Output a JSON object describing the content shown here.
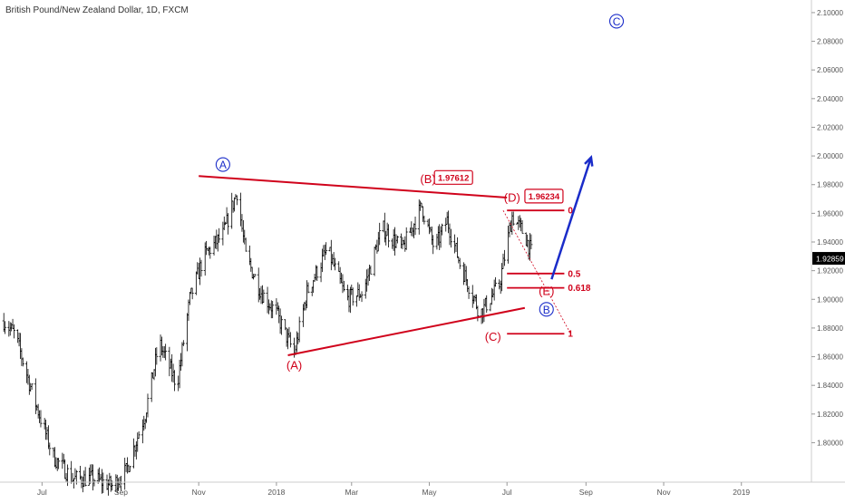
{
  "header": {
    "title": "British Pound/New Zealand Dollar, 1D, FXCM"
  },
  "colors": {
    "wave": "#d0021b",
    "blue": "#1a2cc9",
    "bar": "#000000",
    "axis": "#555555",
    "price_tag": "#000000"
  },
  "chart_data": {
    "type": "bar",
    "title": "British Pound/New Zealand Dollar, 1D, FXCM",
    "series_note": "OHLC daily bars",
    "ylim": [
      1.775,
      2.105
    ],
    "y_ticks": [
      "2.10000",
      "2.08000",
      "2.06000",
      "2.04000",
      "2.02000",
      "2.00000",
      "1.98000",
      "1.96000",
      "1.94000",
      "1.92000",
      "1.90000",
      "1.88000",
      "1.86000",
      "1.84000",
      "1.82000",
      "1.80000"
    ],
    "x_ticks": [
      "Jul",
      "Sep",
      "Nov",
      "2018",
      "Mar",
      "May",
      "Jul",
      "Sep",
      "Nov",
      "2019"
    ],
    "last_price": "1.92859",
    "price_anchors": [
      [
        "2017-06-01",
        1.885
      ],
      [
        "2017-06-10",
        1.875
      ],
      [
        "2017-06-25",
        1.83
      ],
      [
        "2017-07-10",
        1.79
      ],
      [
        "2017-07-25",
        1.775
      ],
      [
        "2017-08-10",
        1.775
      ],
      [
        "2017-08-25",
        1.77
      ],
      [
        "2017-09-05",
        1.78
      ],
      [
        "2017-09-20",
        1.82
      ],
      [
        "2017-10-01",
        1.87
      ],
      [
        "2017-10-15",
        1.84
      ],
      [
        "2017-10-25",
        1.9
      ],
      [
        "2017-11-05",
        1.93
      ],
      [
        "2017-11-20",
        1.945
      ],
      [
        "2017-12-01",
        1.975
      ],
      [
        "2017-12-08",
        1.93
      ],
      [
        "2017-12-20",
        1.905
      ],
      [
        "2018-01-01",
        1.89
      ],
      [
        "2018-01-15",
        1.862
      ],
      [
        "2018-01-25",
        1.905
      ],
      [
        "2018-02-10",
        1.935
      ],
      [
        "2018-02-25",
        1.9
      ],
      [
        "2018-03-10",
        1.905
      ],
      [
        "2018-03-25",
        1.95
      ],
      [
        "2018-04-10",
        1.935
      ],
      [
        "2018-04-25",
        1.965
      ],
      [
        "2018-05-05",
        1.935
      ],
      [
        "2018-05-15",
        1.955
      ],
      [
        "2018-05-25",
        1.925
      ],
      [
        "2018-06-10",
        1.89
      ],
      [
        "2018-06-25",
        1.91
      ],
      [
        "2018-07-05",
        1.958
      ],
      [
        "2018-07-15",
        1.945
      ],
      [
        "2018-07-22",
        1.928
      ]
    ],
    "annotations": [
      {
        "label": "A",
        "circled": true,
        "color": "blue",
        "x": "2017-11-20",
        "y": 1.994
      },
      {
        "label": "B",
        "circled": true,
        "color": "blue",
        "x": "2018-08-01",
        "y": 1.893
      },
      {
        "label": "C",
        "circled": true,
        "color": "blue",
        "x": "2018-09-25",
        "y": 2.094
      },
      {
        "label": "(A)",
        "x": "2018-01-15",
        "y": 1.854
      },
      {
        "label": "(B)",
        "x": "2018-04-30",
        "y": 1.984
      },
      {
        "label": "(C)",
        "x": "2018-06-20",
        "y": 1.874
      },
      {
        "label": "(D)",
        "x": "2018-07-05",
        "y": 1.971
      },
      {
        "label": "(E)",
        "x": "2018-08-01",
        "y": 1.906
      }
    ],
    "price_callouts": [
      {
        "label": "1.97612",
        "x": "2018-05-20",
        "y": 1.985
      },
      {
        "label": "1.96234",
        "x": "2018-07-30",
        "y": 1.972
      }
    ],
    "fib_levels": [
      {
        "label": "0",
        "y": 1.962
      },
      {
        "label": "0.5",
        "y": 1.918
      },
      {
        "label": "0.618",
        "y": 1.908
      },
      {
        "label": "1",
        "y": 1.876
      }
    ]
  }
}
